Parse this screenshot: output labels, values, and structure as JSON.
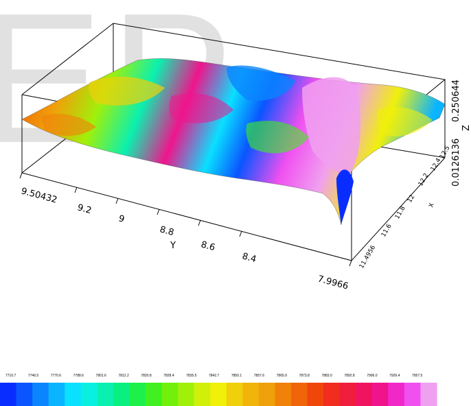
{
  "watermark": "EP",
  "chart_data": {
    "type": "surface3d",
    "title": "",
    "axes": {
      "y": {
        "label": "Y",
        "ticks": [
          "9.50432",
          "9.2",
          "9",
          "8.8",
          "8.6",
          "8.4",
          "7.9966"
        ],
        "range": [
          7.9966,
          9.50432
        ]
      },
      "x": {
        "label": "X",
        "ticks": [
          "11.4956",
          "11.6",
          "11.8",
          "12",
          "12.2",
          "12.4",
          "12.5"
        ],
        "range": [
          11.4956,
          12.5
        ]
      },
      "z": {
        "label": "Z",
        "ticks": [
          "0.0126136",
          "0.250644"
        ],
        "range": [
          0.0126136,
          0.250644
        ]
      }
    },
    "colorbar": {
      "labels": [
        "7710.7",
        "7746.5",
        "7770.6",
        "7788.6",
        "7801.6",
        "7812.2",
        "7820.8",
        "7828.4",
        "7835.5",
        "7842.7",
        "7850.1",
        "7857.6",
        "7865.9",
        "7873.8",
        "7883.0",
        "7892.8",
        "7906.0",
        "7926.4",
        "7957.5"
      ],
      "colors": [
        "#0a2dff",
        "#0a55ff",
        "#0a85ff",
        "#0ab4ff",
        "#0ae0ff",
        "#0af0e0",
        "#0af0b0",
        "#0af080",
        "#1ef04a",
        "#40f020",
        "#70f00a",
        "#a0f00a",
        "#d0f00a",
        "#f0f00a",
        "#f0d00a",
        "#f0b40a",
        "#f0a00a",
        "#f0820a",
        "#f0640a",
        "#f0460a",
        "#f02d1e",
        "#f01e3c",
        "#f01460",
        "#f0148c",
        "#f028c8",
        "#f050f0",
        "#f0a0f0"
      ]
    }
  }
}
